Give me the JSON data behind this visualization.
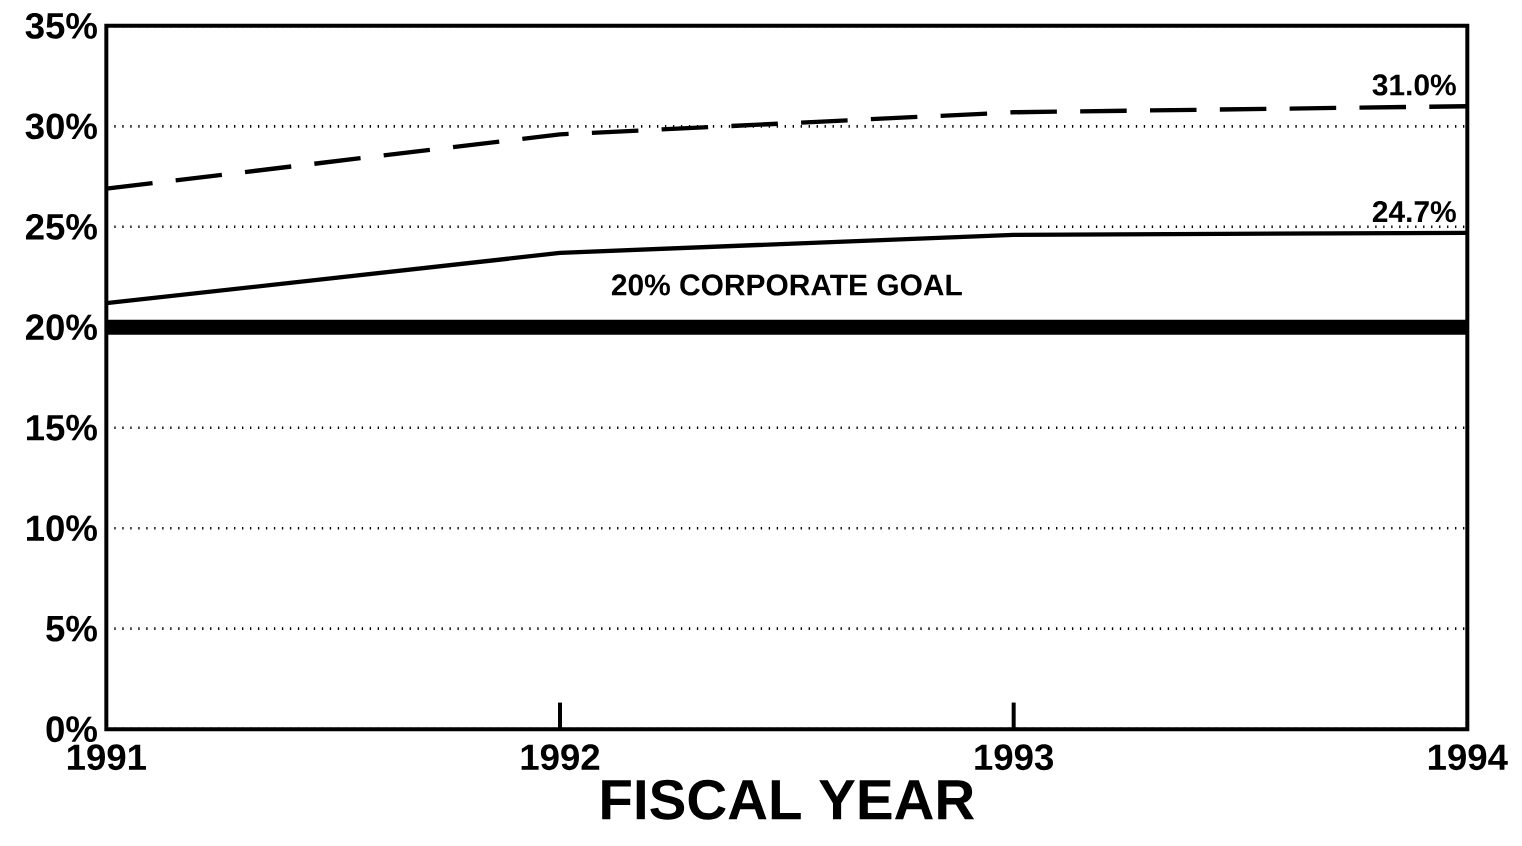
{
  "chart_data": {
    "type": "line",
    "xlabel": "FISCAL YEAR",
    "x": [
      1991,
      1992,
      1993,
      1994
    ],
    "series": [
      {
        "color": "#000000",
        "line_style": "dashed",
        "values": [
          26.9,
          29.6,
          30.7,
          31.0
        ],
        "value_labels": [
          null,
          null,
          null,
          "31.0%"
        ]
      },
      {
        "color": "#000000",
        "line_style": "solid",
        "values": [
          21.2,
          23.7,
          24.6,
          24.7
        ],
        "value_labels": [
          null,
          null,
          null,
          "24.7%"
        ]
      }
    ],
    "xlim": [
      1991,
      1994
    ],
    "xticks": [
      1991,
      1992,
      1993,
      1994
    ],
    "ylim": [
      0,
      35
    ],
    "yticks": [
      {
        "value": 0,
        "label": "0%"
      },
      {
        "value": 5,
        "label": "5%"
      },
      {
        "value": 10,
        "label": "10%"
      },
      {
        "value": 15,
        "label": "15%"
      },
      {
        "value": 20,
        "label": "20%"
      },
      {
        "value": 25,
        "label": "25%"
      },
      {
        "value": 30,
        "label": "30%"
      },
      {
        "value": 35,
        "label": "35%"
      }
    ],
    "grid": "y",
    "marker": "none",
    "ref_lines": [
      {
        "axis": "y",
        "value": 20,
        "label": "20% CORPORATE GOAL",
        "color": "#000000"
      }
    ]
  }
}
